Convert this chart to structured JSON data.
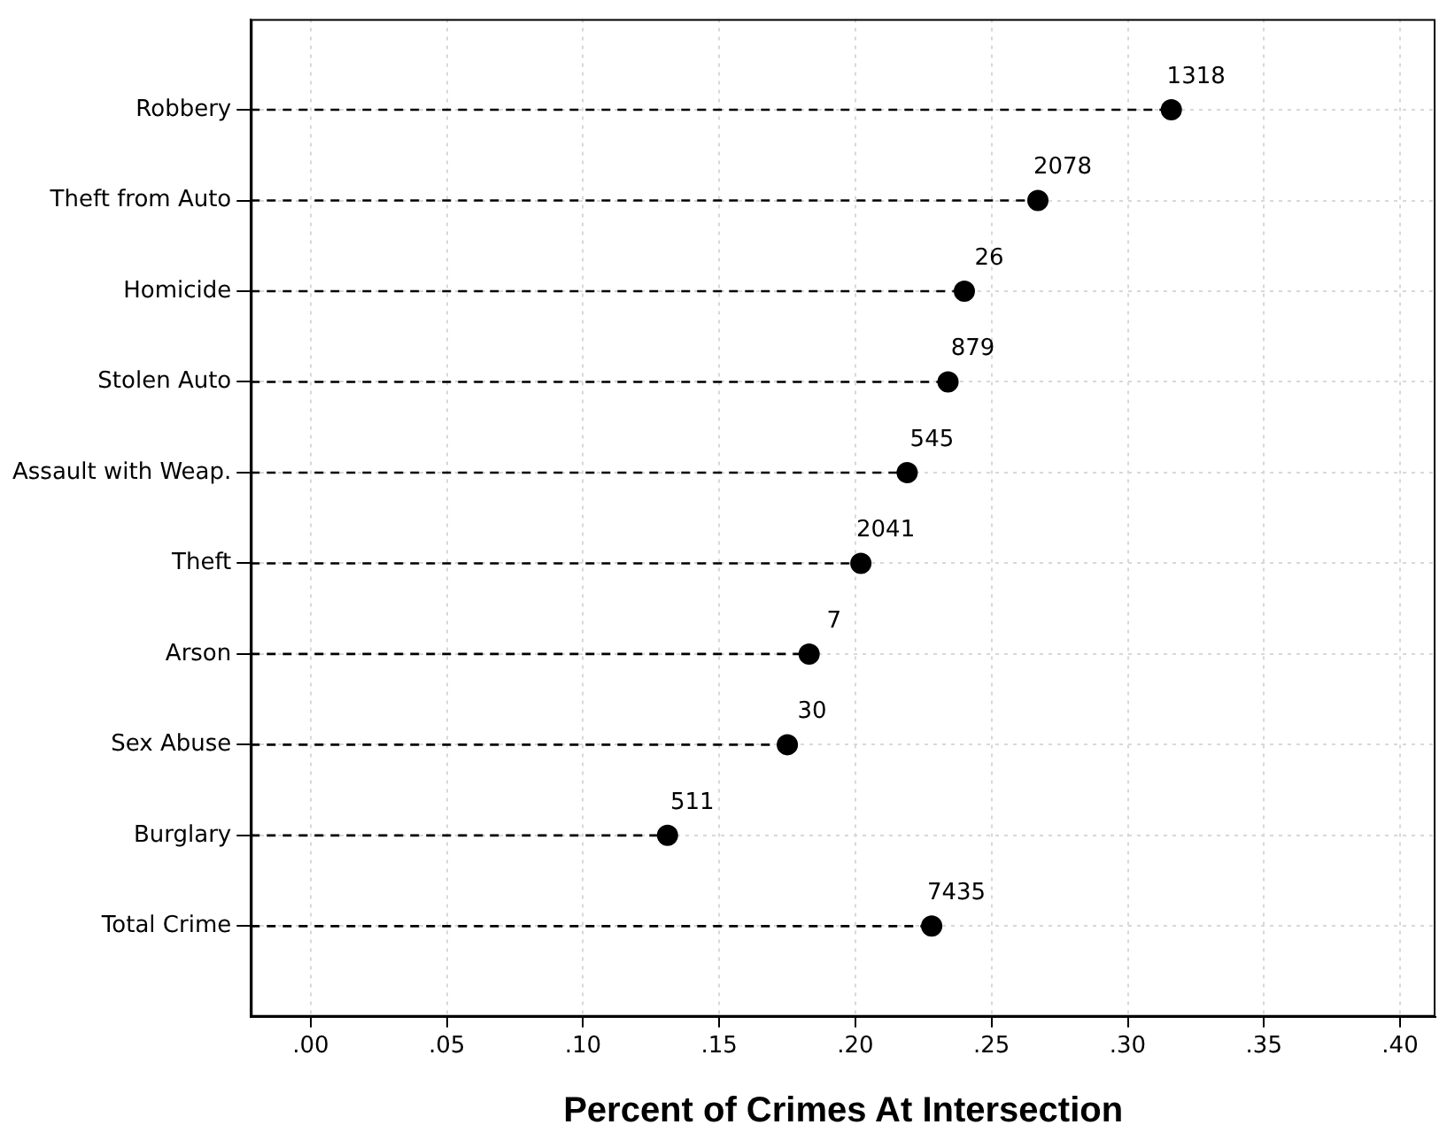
{
  "chart_data": {
    "type": "lollipop",
    "orientation": "horizontal",
    "xlabel": "Percent of Crimes At Intersection",
    "categories": [
      "Robbery",
      "Theft from Auto",
      "Homicide",
      "Stolen Auto",
      "Assault with Weap.",
      "Theft",
      "Arson",
      "Sex Abuse",
      "Burglary",
      "Total Crime"
    ],
    "values": [
      0.316,
      0.267,
      0.24,
      0.234,
      0.219,
      0.202,
      0.183,
      0.175,
      0.131,
      0.228
    ],
    "annotations": [
      {
        "text": "1318",
        "x": 0.316,
        "y": "Robbery"
      },
      {
        "text": "2078",
        "x": 0.267,
        "y": "Theft from Auto"
      },
      {
        "text": "26",
        "x": 0.24,
        "y": "Homicide"
      },
      {
        "text": "879",
        "x": 0.234,
        "y": "Stolen Auto"
      },
      {
        "text": "545",
        "x": 0.219,
        "y": "Assault with Weap."
      },
      {
        "text": "2041",
        "x": 0.202,
        "y": "Theft"
      },
      {
        "text": "7",
        "x": 0.183,
        "y": "Arson"
      },
      {
        "text": "30",
        "x": 0.175,
        "y": "Sex Abuse"
      },
      {
        "text": "511",
        "x": 0.131,
        "y": "Burglary"
      },
      {
        "text": "7435",
        "x": 0.228,
        "y": "Total Crime"
      }
    ],
    "color": "#000000",
    "xlim": [
      -0.022,
      0.413
    ],
    "xticks": [
      {
        "value": 0,
        "label": ".00"
      },
      {
        "value": 0.05,
        "label": ".05"
      },
      {
        "value": 0.1,
        "label": ".10"
      },
      {
        "value": 0.15,
        "label": ".15"
      },
      {
        "value": 0.2,
        "label": ".20"
      },
      {
        "value": 0.25,
        "label": ".25"
      },
      {
        "value": 0.3,
        "label": ".30"
      },
      {
        "value": 0.35,
        "label": ".35"
      },
      {
        "value": 0.4,
        "label": ".40"
      }
    ],
    "grid": true,
    "marker": "circle",
    "line_style": "dashed",
    "legend": false
  }
}
